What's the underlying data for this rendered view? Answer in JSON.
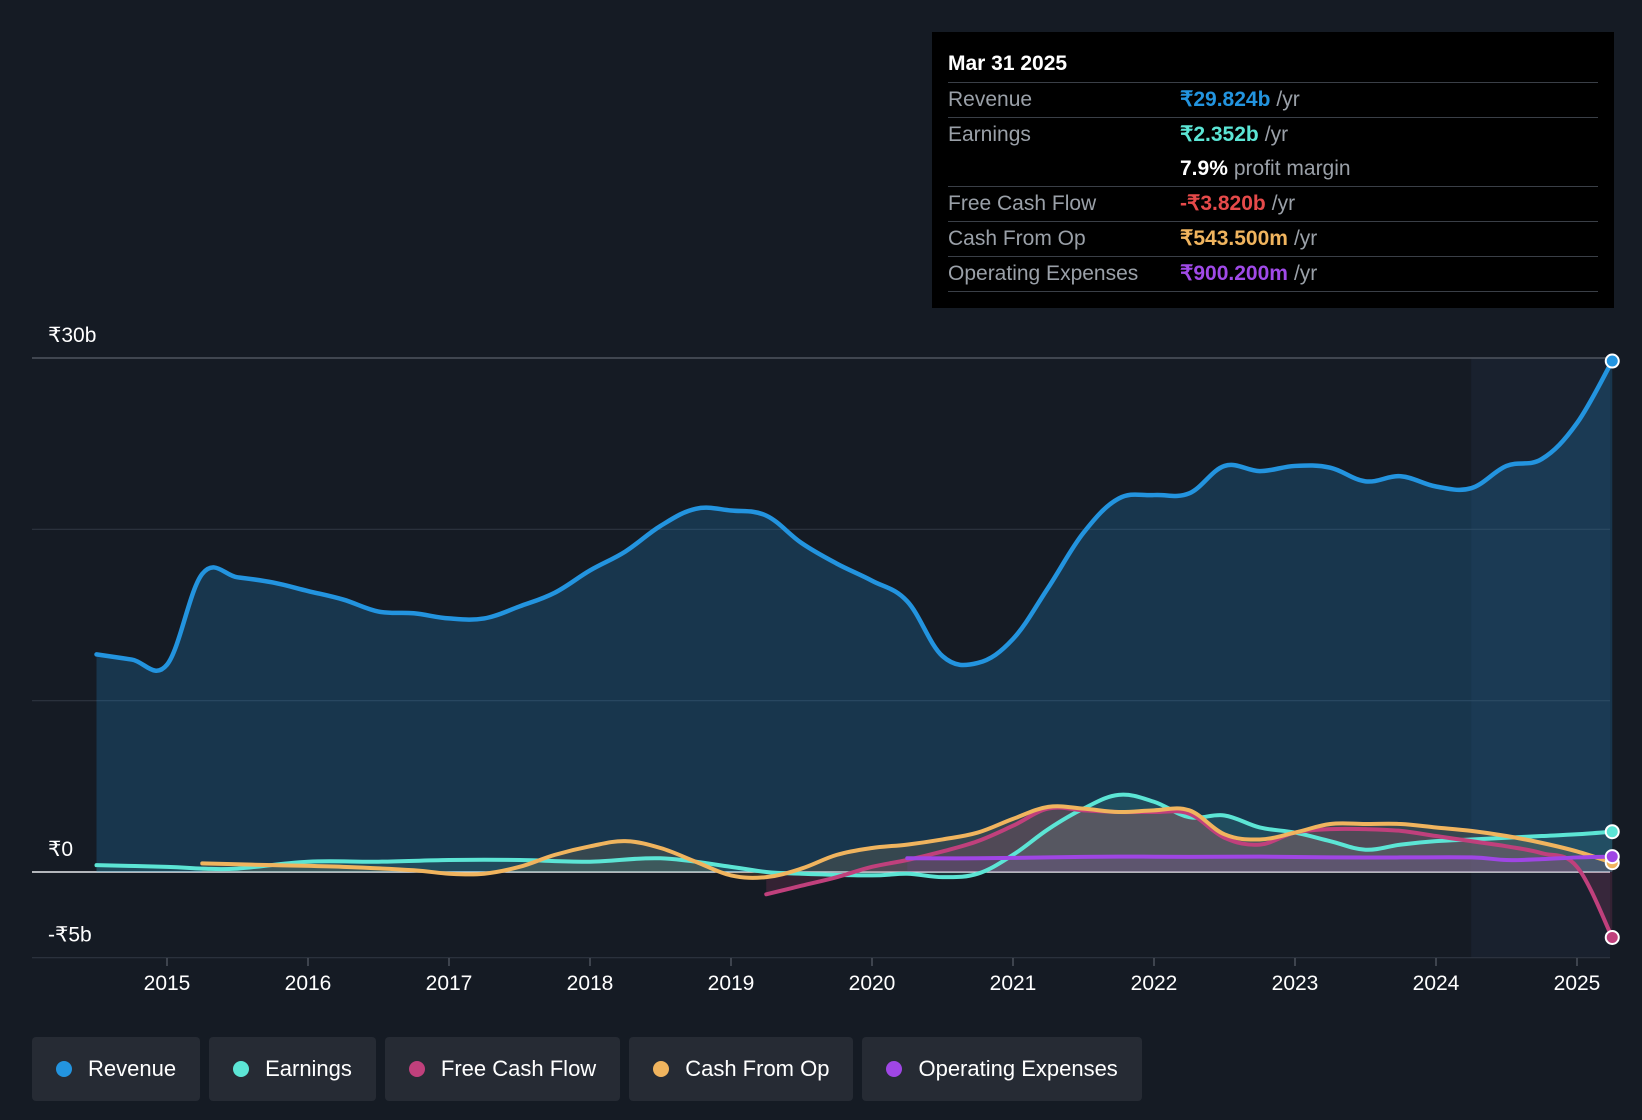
{
  "tooltip": {
    "date": "Mar 31 2025",
    "rows": [
      {
        "label": "Revenue",
        "value": "₹29.824b",
        "unit": "/yr",
        "color": "#2394df"
      },
      {
        "label": "Earnings",
        "value": "₹2.352b",
        "unit": "/yr",
        "color": "#5ce5d5"
      },
      {
        "label": "",
        "value": "7.9%",
        "unit": "profit margin",
        "color": "#ffffff"
      },
      {
        "label": "Free Cash Flow",
        "value": "-₹3.820b",
        "unit": "/yr",
        "color": "#e64a4a"
      },
      {
        "label": "Cash From Op",
        "value": "₹543.500m",
        "unit": "/yr",
        "color": "#f0b45e"
      },
      {
        "label": "Operating Expenses",
        "value": "₹900.200m",
        "unit": "/yr",
        "color": "#a04ae8"
      }
    ]
  },
  "legend": [
    {
      "label": "Revenue",
      "color": "#2394df"
    },
    {
      "label": "Earnings",
      "color": "#5ce5d5"
    },
    {
      "label": "Free Cash Flow",
      "color": "#c0407c"
    },
    {
      "label": "Cash From Op",
      "color": "#f0b45e"
    },
    {
      "label": "Operating Expenses",
      "color": "#9f46e4"
    }
  ],
  "chart_data": {
    "type": "line",
    "title": "",
    "units": "₹b",
    "xlim": [
      2014.0,
      2025.25
    ],
    "ylim": [
      -5,
      30
    ],
    "y_tick_labels": [
      {
        "value": 30,
        "label": "₹30b"
      },
      {
        "value": 0,
        "label": "₹0"
      },
      {
        "value": -5,
        "label": "-₹5b"
      }
    ],
    "gridlines": [
      30,
      20,
      10,
      0,
      -5
    ],
    "x_ticks": [
      2015,
      2016,
      2017,
      2018,
      2019,
      2020,
      2021,
      2022,
      2023,
      2024,
      2025
    ],
    "forecast_shade_start": 2024.25,
    "series": [
      {
        "name": "Revenue",
        "color": "#2394df",
        "x": [
          2014.5,
          2014.75,
          2015.0,
          2015.25,
          2015.5,
          2015.75,
          2016.0,
          2016.25,
          2016.5,
          2016.75,
          2017.0,
          2017.25,
          2017.5,
          2017.75,
          2018.0,
          2018.25,
          2018.5,
          2018.75,
          2019.0,
          2019.25,
          2019.5,
          2019.75,
          2020.0,
          2020.25,
          2020.5,
          2020.75,
          2021.0,
          2021.25,
          2021.5,
          2021.75,
          2022.0,
          2022.25,
          2022.5,
          2022.75,
          2023.0,
          2023.25,
          2023.5,
          2023.75,
          2024.0,
          2024.25,
          2024.5,
          2024.75,
          2025.0,
          2025.25
        ],
        "values": [
          12.7,
          12.4,
          12.1,
          17.4,
          17.2,
          16.9,
          16.4,
          15.9,
          15.2,
          15.1,
          14.8,
          14.8,
          15.5,
          16.3,
          17.6,
          18.7,
          20.2,
          21.2,
          21.1,
          20.8,
          19.2,
          18.0,
          17.0,
          15.8,
          12.6,
          12.2,
          13.6,
          16.6,
          19.8,
          21.8,
          22.0,
          22.1,
          23.7,
          23.4,
          23.7,
          23.6,
          22.8,
          23.1,
          22.5,
          22.4,
          23.7,
          24.1,
          26.2,
          29.824
        ]
      },
      {
        "name": "Earnings",
        "color": "#5ce5d5",
        "x": [
          2014.5,
          2015.0,
          2015.25,
          2015.5,
          2016.0,
          2016.5,
          2017.0,
          2017.5,
          2018.0,
          2018.5,
          2019.0,
          2019.25,
          2019.5,
          2020.0,
          2020.25,
          2020.5,
          2020.75,
          2021.0,
          2021.25,
          2021.5,
          2021.75,
          2022.0,
          2022.25,
          2022.5,
          2022.75,
          2023.0,
          2023.25,
          2023.5,
          2023.75,
          2024.0,
          2024.25,
          2024.5,
          2024.75,
          2025.0,
          2025.25
        ],
        "values": [
          0.4,
          0.3,
          0.2,
          0.2,
          0.6,
          0.6,
          0.7,
          0.7,
          0.6,
          0.8,
          0.3,
          0.0,
          -0.1,
          -0.2,
          -0.1,
          -0.3,
          -0.1,
          1.0,
          2.5,
          3.7,
          4.5,
          4.1,
          3.2,
          3.3,
          2.6,
          2.3,
          1.8,
          1.3,
          1.6,
          1.8,
          1.9,
          2.0,
          2.1,
          2.2,
          2.352
        ]
      },
      {
        "name": "Free Cash Flow",
        "color": "#c0407c",
        "x": [
          2019.25,
          2019.5,
          2019.75,
          2020.0,
          2020.25,
          2020.5,
          2020.75,
          2021.0,
          2021.25,
          2021.5,
          2021.75,
          2022.0,
          2022.25,
          2022.5,
          2022.75,
          2023.0,
          2023.25,
          2023.5,
          2023.75,
          2024.0,
          2024.25,
          2024.5,
          2024.75,
          2025.0,
          2025.25
        ],
        "values": [
          -1.3,
          -0.8,
          -0.3,
          0.3,
          0.7,
          1.2,
          1.8,
          2.7,
          3.7,
          3.6,
          3.5,
          3.5,
          3.4,
          2.0,
          1.6,
          2.3,
          2.5,
          2.5,
          2.4,
          2.1,
          1.8,
          1.5,
          1.1,
          0.3,
          -3.82
        ]
      },
      {
        "name": "Cash From Op",
        "color": "#f0b45e",
        "x": [
          2015.25,
          2015.75,
          2016.25,
          2016.75,
          2017.0,
          2017.25,
          2017.5,
          2017.75,
          2018.0,
          2018.25,
          2018.5,
          2018.75,
          2019.0,
          2019.25,
          2019.5,
          2019.75,
          2020.0,
          2020.25,
          2020.5,
          2020.75,
          2021.0,
          2021.25,
          2021.5,
          2021.75,
          2022.0,
          2022.25,
          2022.5,
          2022.75,
          2023.0,
          2023.25,
          2023.5,
          2023.75,
          2024.0,
          2024.25,
          2024.5,
          2024.75,
          2025.0,
          2025.25
        ],
        "values": [
          0.5,
          0.4,
          0.3,
          0.1,
          -0.1,
          -0.1,
          0.3,
          1.0,
          1.5,
          1.8,
          1.4,
          0.6,
          -0.2,
          -0.3,
          0.2,
          1.0,
          1.4,
          1.6,
          1.9,
          2.3,
          3.1,
          3.8,
          3.7,
          3.5,
          3.6,
          3.6,
          2.2,
          1.9,
          2.3,
          2.8,
          2.8,
          2.8,
          2.6,
          2.4,
          2.1,
          1.7,
          1.2,
          0.5435
        ]
      },
      {
        "name": "Operating Expenses",
        "color": "#9f46e4",
        "x": [
          2020.25,
          2020.75,
          2021.25,
          2021.75,
          2022.25,
          2022.75,
          2023.25,
          2023.75,
          2024.25,
          2024.5,
          2024.75,
          2025.0,
          2025.25
        ],
        "values": [
          0.8,
          0.8,
          0.85,
          0.9,
          0.88,
          0.9,
          0.85,
          0.85,
          0.85,
          0.7,
          0.75,
          0.85,
          0.9002
        ]
      }
    ]
  }
}
